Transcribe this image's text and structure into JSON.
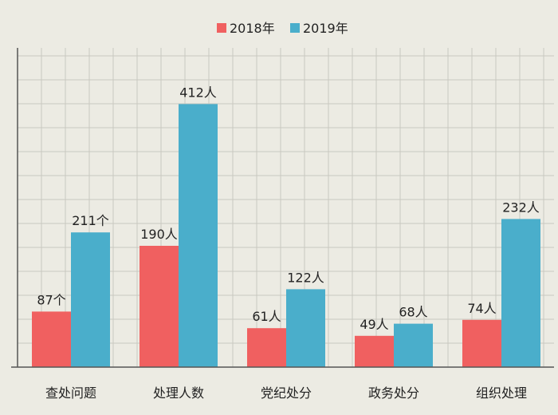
{
  "chart_data": {
    "type": "bar",
    "categories": [
      "查处问题",
      "处理人数",
      "党纪处分",
      "政务处分",
      "组织处理"
    ],
    "series": [
      {
        "name": "2018年",
        "color": "#f06060",
        "values": [
          87,
          190,
          61,
          49,
          74
        ],
        "labels": [
          "87个",
          "190人",
          "61人",
          "49人",
          "74人"
        ]
      },
      {
        "name": "2019年",
        "color": "#4aaecb",
        "values": [
          211,
          412,
          122,
          68,
          232
        ],
        "labels": [
          "211个",
          "412人",
          "122人",
          "68人",
          "232人"
        ]
      }
    ],
    "title": "",
    "xlabel": "",
    "ylabel": "",
    "ylim": [
      0,
      500
    ],
    "grid": true,
    "legend": "top-center"
  }
}
